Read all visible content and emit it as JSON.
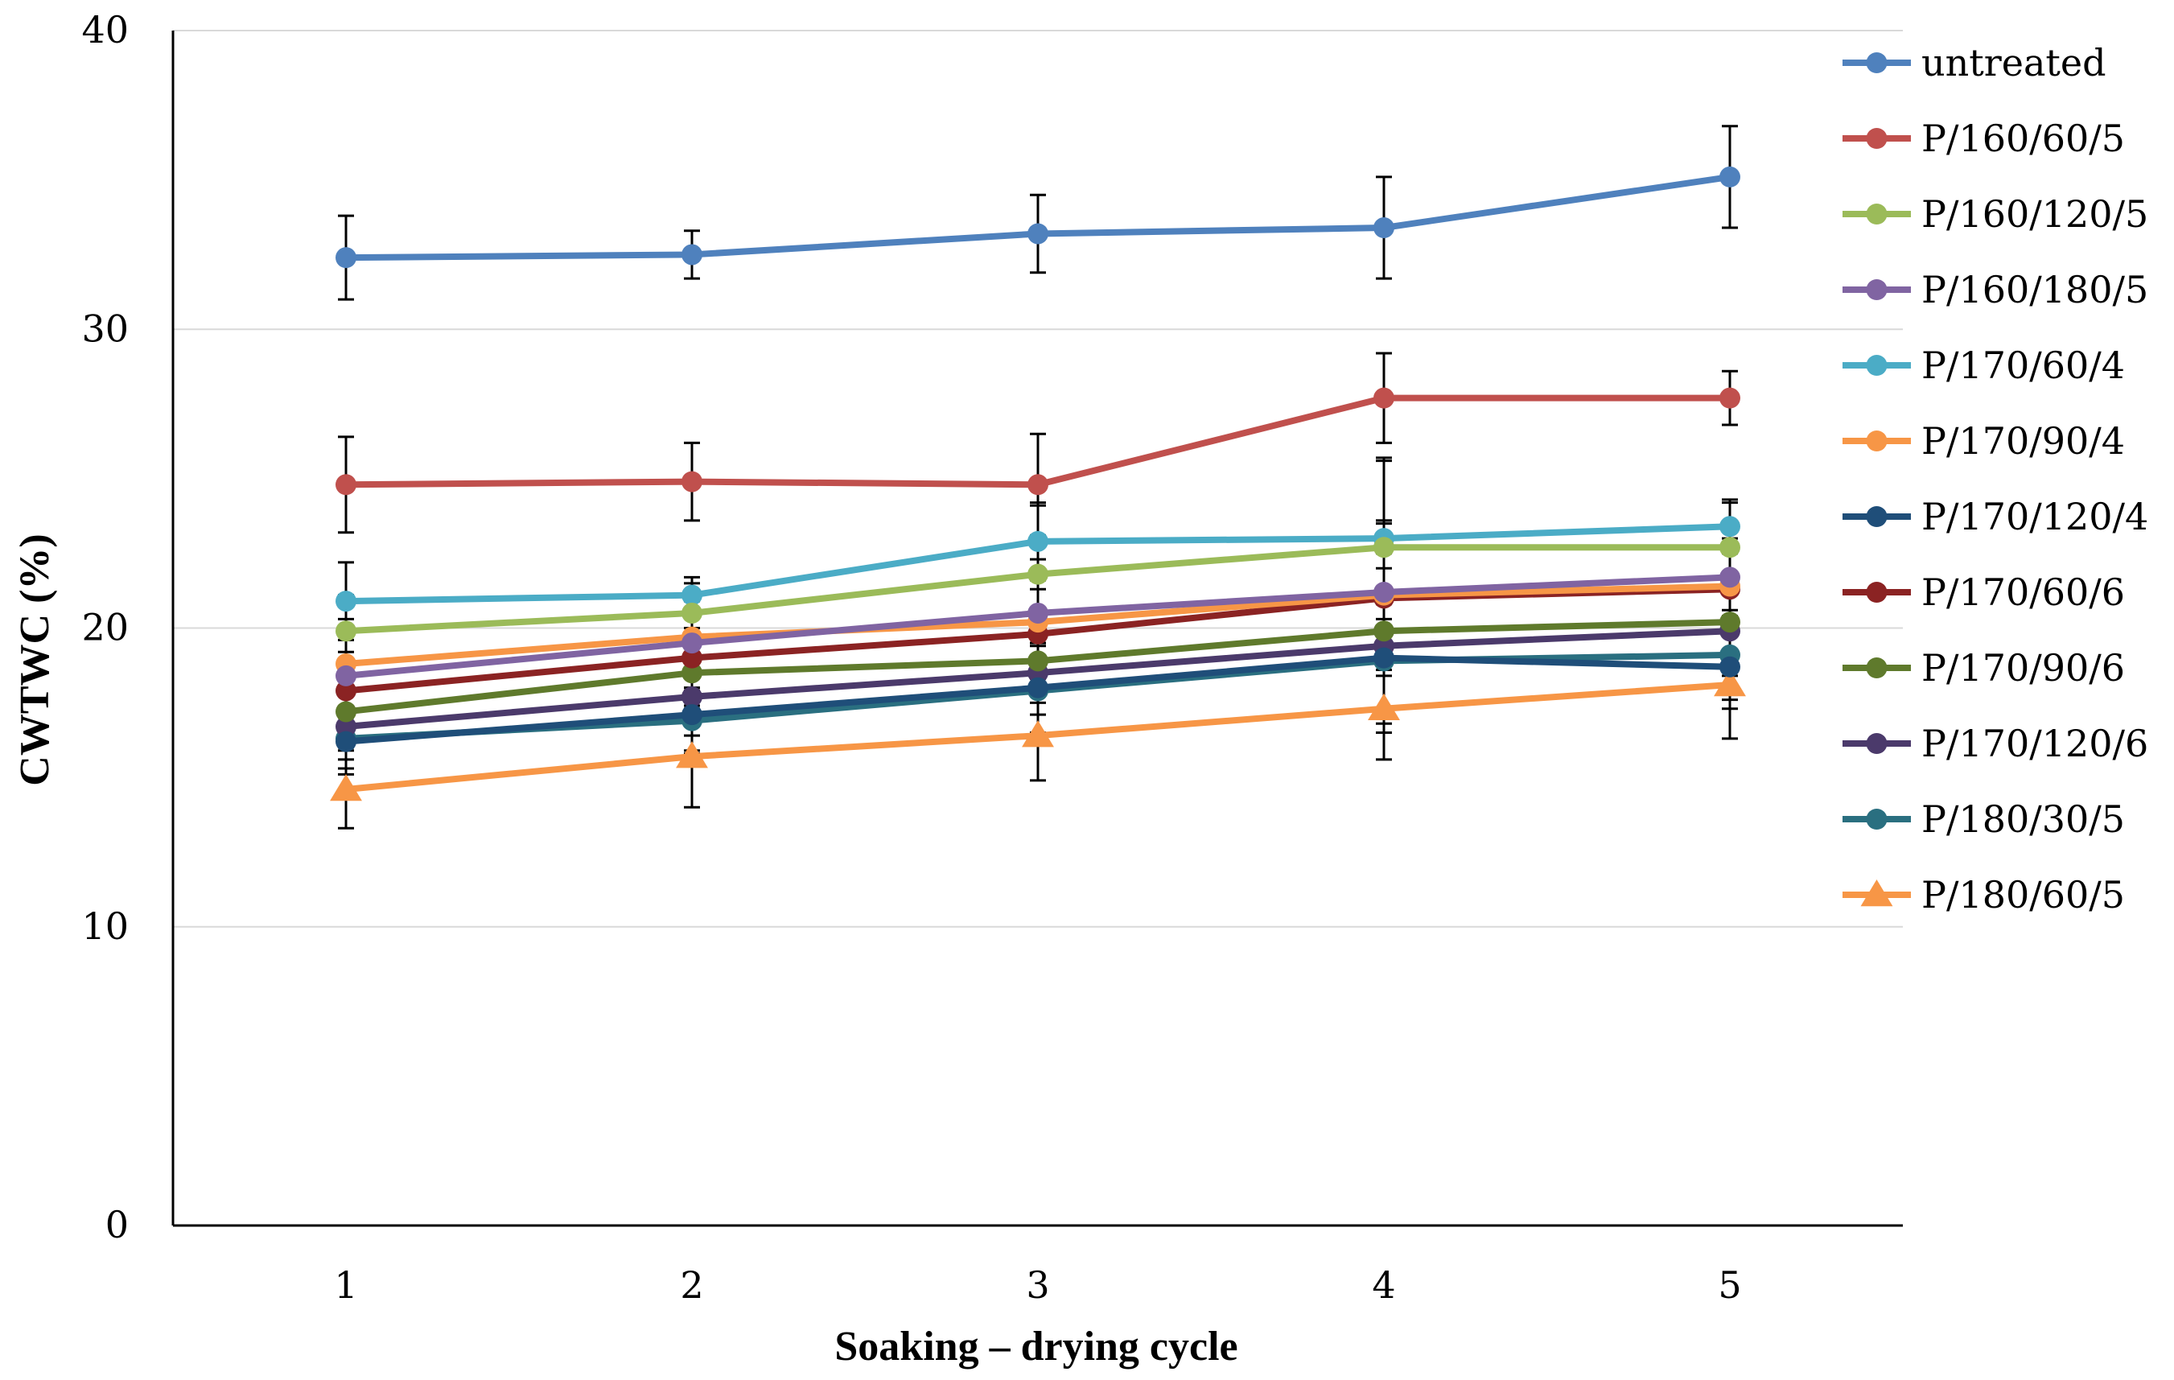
{
  "chart_data": {
    "type": "line",
    "title": "",
    "xlabel": "Soaking – drying cycle",
    "ylabel": "CWTWC (%)",
    "x": [
      1,
      2,
      3,
      4,
      5
    ],
    "x_tick_labels": [
      "1",
      "2",
      "3",
      "4",
      "5"
    ],
    "ylim": [
      0,
      40
    ],
    "y_ticks": [
      0,
      10,
      20,
      30,
      40
    ],
    "y_tick_labels": [
      "0",
      "10",
      "20",
      "30",
      "40"
    ],
    "grid": "horizontal",
    "legend_position": "right",
    "series": [
      {
        "name": "untreated",
        "color": "#4F81BD",
        "marker": "circle",
        "values": [
          32.4,
          32.5,
          33.2,
          33.4,
          35.1
        ],
        "error": [
          1.4,
          0.8,
          1.3,
          1.7,
          1.7
        ]
      },
      {
        "name": "P/160/60/5",
        "color": "#C0504D",
        "marker": "circle",
        "values": [
          24.8,
          24.9,
          24.8,
          27.7,
          27.7
        ],
        "error": [
          1.6,
          1.3,
          1.7,
          1.5,
          0.9
        ]
      },
      {
        "name": "P/160/120/5",
        "color": "#9BBB59",
        "marker": "circle",
        "values": [
          19.9,
          20.5,
          21.8,
          22.7,
          22.7
        ],
        "error": [
          1.2,
          1.0,
          2.3,
          2.9,
          1.5
        ]
      },
      {
        "name": "P/160/180/5",
        "color": "#8064A2",
        "marker": "circle",
        "values": [
          18.4,
          19.5,
          20.5,
          21.2,
          21.7
        ],
        "error": [
          1.4,
          1.5,
          1.8,
          2.3,
          1.3
        ]
      },
      {
        "name": "P/170/60/4",
        "color": "#4BACC6",
        "marker": "circle",
        "values": [
          20.9,
          21.1,
          22.9,
          23.0,
          23.4
        ],
        "error": [
          1.3,
          0.6,
          1.3,
          2.7,
          0.9
        ]
      },
      {
        "name": "P/170/90/4",
        "color": "#F79646",
        "marker": "circle",
        "values": [
          18.8,
          19.7,
          20.2,
          21.1,
          21.4
        ],
        "error": [
          1.5,
          1.2,
          1.5,
          2.5,
          1.3
        ]
      },
      {
        "name": "P/170/120/4",
        "color": "#1F4E79",
        "marker": "circle",
        "values": [
          16.2,
          17.1,
          18.0,
          19.0,
          18.7
        ],
        "error": [
          1.1,
          1.3,
          1.5,
          1.8,
          1.4
        ]
      },
      {
        "name": "P/170/60/6",
        "color": "#8B2323",
        "marker": "circle",
        "values": [
          17.9,
          19.0,
          19.8,
          21.0,
          21.3
        ],
        "error": [
          1.3,
          1.0,
          1.5,
          2.6,
          1.3
        ]
      },
      {
        "name": "P/170/90/6",
        "color": "#5F7A2C",
        "marker": "circle",
        "values": [
          17.2,
          18.5,
          18.9,
          19.9,
          20.2
        ],
        "error": [
          1.2,
          1.2,
          1.4,
          2.6,
          1.4
        ]
      },
      {
        "name": "P/170/120/6",
        "color": "#4B3A6B",
        "marker": "circle",
        "values": [
          16.7,
          17.7,
          18.5,
          19.4,
          19.9
        ],
        "error": [
          1.1,
          1.3,
          1.4,
          2.6,
          1.5
        ]
      },
      {
        "name": "P/180/30/5",
        "color": "#2A6F80",
        "marker": "circle",
        "values": [
          16.3,
          16.9,
          17.9,
          18.9,
          19.1
        ],
        "error": [
          1.0,
          1.0,
          1.5,
          2.4,
          1.5
        ]
      },
      {
        "name": "P/180/60/5",
        "color": "#F79646",
        "marker": "triangle",
        "values": [
          14.6,
          15.7,
          16.4,
          17.3,
          18.1
        ],
        "error": [
          1.3,
          1.7,
          1.5,
          1.7,
          1.8
        ]
      }
    ]
  }
}
